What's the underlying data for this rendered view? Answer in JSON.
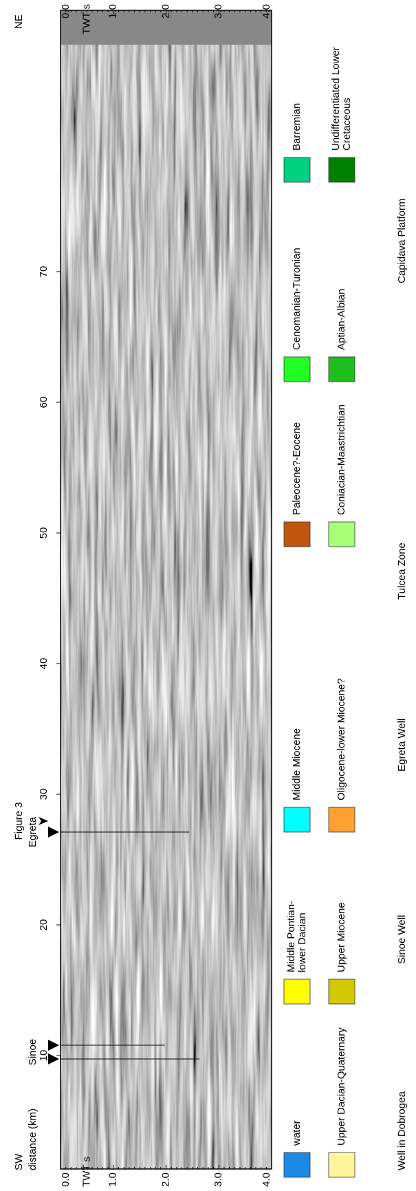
{
  "header": {
    "sw": "SW",
    "ne": "NE",
    "distance_label": "distance (km)",
    "twt_label": "TWT s",
    "figure_ref": "Figure 3"
  },
  "distance_ticks": [
    "10",
    "20",
    "30",
    "40",
    "50",
    "60",
    "70"
  ],
  "twt_ticks": [
    "0.0",
    "1.0",
    "2.0",
    "3.0",
    "4.0"
  ],
  "wells": [
    {
      "label": "Sinoe"
    },
    {
      "label": "Egreta"
    }
  ],
  "legend": [
    {
      "label_lines": [
        "water"
      ],
      "color": "#1e88e5"
    },
    {
      "label_lines": [
        "Upper Dacian-Quaternary"
      ],
      "color": "#fff59d"
    },
    {
      "label_lines": [
        "Middle Pontian-",
        "lower Dacian"
      ],
      "color": "#ffff00"
    },
    {
      "label_lines": [
        "Upper Miocene"
      ],
      "color": "#d4c800"
    },
    {
      "label_lines": [
        "Middle Miocene"
      ],
      "color": "#00ffff"
    },
    {
      "label_lines": [
        "Oligocene-lower Miocene?"
      ],
      "color": "#ffa030"
    },
    {
      "label_lines": [
        "Paleocene?-Eocene"
      ],
      "color": "#c0560e"
    },
    {
      "label_lines": [
        "Coniacian-Maastrichtian"
      ],
      "color": "#a8ff78"
    },
    {
      "label_lines": [
        "Cenomanian-Turonian"
      ],
      "color": "#22ff22"
    },
    {
      "label_lines": [
        "Aptian-Albian"
      ],
      "color": "#1fbf1f"
    },
    {
      "label_lines": [
        "Barremian"
      ],
      "color": "#00d080"
    },
    {
      "label_lines": [
        "Undifferentiated Lower",
        "Cretaceous"
      ],
      "color": "#008000"
    }
  ],
  "footer": [
    "Well in Dobrogea",
    "Sinoe Well",
    "Egreta Well",
    "Tulcea Zone",
    "Capidava Platform"
  ]
}
